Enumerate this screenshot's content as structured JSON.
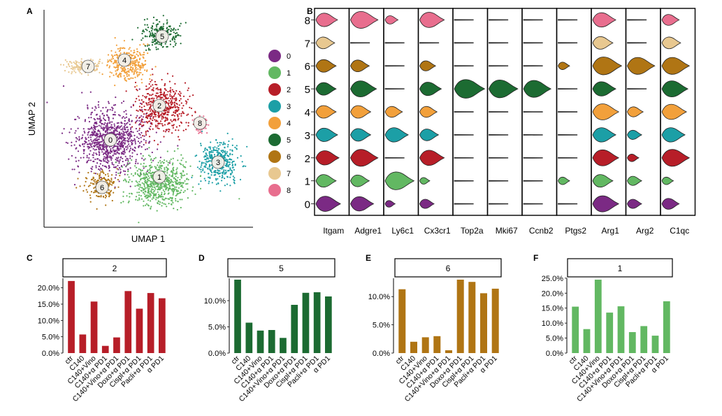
{
  "colors": {
    "0": "#7B2A84",
    "1": "#62B862",
    "2": "#B71E28",
    "3": "#1C9FA6",
    "4": "#F2A03B",
    "5": "#1C6B32",
    "6": "#B07514",
    "7": "#E8C890",
    "8": "#E86E8E"
  },
  "panels": {
    "A": "A",
    "B": "B",
    "C": "C",
    "D": "D",
    "E": "E",
    "F": "F"
  },
  "chart_data": [
    {
      "type": "scatter",
      "panel": "A",
      "xlabel": "UMAP 1",
      "ylabel": "UMAP 2",
      "legend": {
        "placement": "right",
        "entries": [
          "0",
          "1",
          "2",
          "3",
          "4",
          "5",
          "6",
          "7",
          "8"
        ]
      },
      "cluster_labels": [
        "0",
        "1",
        "2",
        "3",
        "4",
        "5",
        "6",
        "7",
        "8"
      ]
    },
    {
      "type": "violin",
      "panel": "B",
      "genes": [
        "Itgam",
        "Adgre1",
        "Ly6c1",
        "Cx3cr1",
        "Top2a",
        "Mki67",
        "Ccnb2",
        "Ptgs2",
        "Arg1",
        "Arg2",
        "C1qc"
      ],
      "clusters": [
        "8",
        "7",
        "6",
        "5",
        "4",
        "3",
        "2",
        "1",
        "0"
      ],
      "expression": {
        "Itgam": {
          "0": 0.75,
          "1": 0.6,
          "2": 0.7,
          "3": 0.65,
          "4": 0.6,
          "5": 0.6,
          "6": 0.6,
          "7": 0.55,
          "8": 0.65
        },
        "Adgre1": {
          "0": 0.7,
          "1": 0.55,
          "2": 0.85,
          "3": 0.6,
          "4": 0.6,
          "5": 0.8,
          "6": 0.55,
          "7": 0,
          "8": 0.85
        },
        "Ly6c1": {
          "0": 0.25,
          "1": 0.9,
          "2": 0,
          "3": 0.7,
          "4": 0.5,
          "5": 0,
          "6": 0,
          "7": 0,
          "8": 0.35
        },
        "Cx3cr1": {
          "0": 0.4,
          "1": 0.25,
          "2": 0.75,
          "3": 0.55,
          "4": 0.5,
          "5": 0.65,
          "6": 0.45,
          "7": 0,
          "8": 0.75
        },
        "Top2a": {
          "0": 0,
          "1": 0,
          "2": 0,
          "3": 0,
          "4": 0,
          "5": 0.95,
          "6": 0,
          "7": 0,
          "8": 0
        },
        "Mki67": {
          "0": 0,
          "1": 0,
          "2": 0,
          "3": 0,
          "4": 0,
          "5": 0.9,
          "6": 0,
          "7": 0,
          "8": 0
        },
        "Ccnb2": {
          "0": 0,
          "1": 0,
          "2": 0,
          "3": 0,
          "4": 0,
          "5": 0.85,
          "6": 0,
          "7": 0,
          "8": 0
        },
        "Ptgs2": {
          "0": 0,
          "1": 0.3,
          "2": 0,
          "3": 0,
          "4": 0,
          "5": 0,
          "6": 0.3,
          "7": 0,
          "8": 0
        },
        "Arg1": {
          "0": 0.8,
          "1": 0.6,
          "2": 0.8,
          "3": 0.7,
          "4": 0.8,
          "5": 0.7,
          "6": 0.9,
          "7": 0.6,
          "8": 0.7
        },
        "Arg2": {
          "0": 0.4,
          "1": 0.4,
          "2": 0.3,
          "3": 0.4,
          "4": 0.45,
          "5": 0,
          "6": 0.85,
          "7": 0,
          "8": 0
        },
        "C1qc": {
          "0": 0.5,
          "1": 0.3,
          "2": 0.85,
          "3": 0.7,
          "4": 0.75,
          "5": 0.8,
          "6": 0.85,
          "7": 0.55,
          "8": 0.5
        }
      }
    },
    {
      "type": "bar",
      "panel": "C",
      "facet": "2",
      "color_cluster": "2",
      "categories": [
        "ctr",
        "C140",
        "C140+Vino",
        "C140+α PD1",
        "C140+Vino+α PD1",
        "Doxo+α PD1",
        "Cispl+α PD1",
        "Pacli+α PD1",
        "α PD1"
      ],
      "values": [
        22.1,
        5.7,
        15.8,
        2.2,
        4.8,
        19.0,
        13.6,
        18.4,
        16.8
      ],
      "ylim": [
        0,
        22.5
      ],
      "yticks": [
        "0.0%",
        "5.0%",
        "10.0%",
        "15.0%",
        "20.0%"
      ]
    },
    {
      "type": "bar",
      "panel": "D",
      "facet": "5",
      "color_cluster": "5",
      "categories": [
        "ctr",
        "C140",
        "C140+Vino",
        "C140+α PD1",
        "C140+Vino+α PD1",
        "Doxo+α PD1",
        "Cispl+α PD1",
        "Pacli+α PD1",
        "α PD1"
      ],
      "values": [
        14.0,
        5.8,
        4.3,
        4.4,
        2.9,
        9.2,
        11.5,
        11.6,
        10.8
      ],
      "ylim": [
        0,
        14.0
      ],
      "yticks": [
        "0.0%",
        "5.0%",
        "10.0%"
      ]
    },
    {
      "type": "bar",
      "panel": "E",
      "facet": "6",
      "color_cluster": "6",
      "categories": [
        "ctr",
        "C140",
        "C140+Vino",
        "C140+α PD1",
        "C140+Vino+α PD1",
        "Doxo+α PD1",
        "Cispl+α PD1",
        "Pacli+α PD1",
        "α PD1"
      ],
      "values": [
        11.3,
        2.0,
        2.8,
        3.0,
        0.5,
        13.0,
        12.6,
        10.6,
        11.4
      ],
      "ylim": [
        0,
        13.0
      ],
      "yticks": [
        "0.0%",
        "5.0%",
        "10.0%"
      ]
    },
    {
      "type": "bar",
      "panel": "F",
      "facet": "1",
      "color_cluster": "1",
      "categories": [
        "ctr",
        "C140",
        "C140+Vino",
        "C140+α PD1",
        "C140+Vino+α PD1",
        "Doxo+α PD1",
        "Cispl+α PD1",
        "Pacli+α PD1",
        "α PD1"
      ],
      "values": [
        15.5,
        8.0,
        24.5,
        13.5,
        15.6,
        7.0,
        9.0,
        5.8,
        17.3
      ],
      "ylim": [
        0,
        24.5
      ],
      "yticks": [
        "0.0%",
        "5.0%",
        "10.0%",
        "15.0%",
        "20.0%",
        "25.0%"
      ]
    }
  ]
}
